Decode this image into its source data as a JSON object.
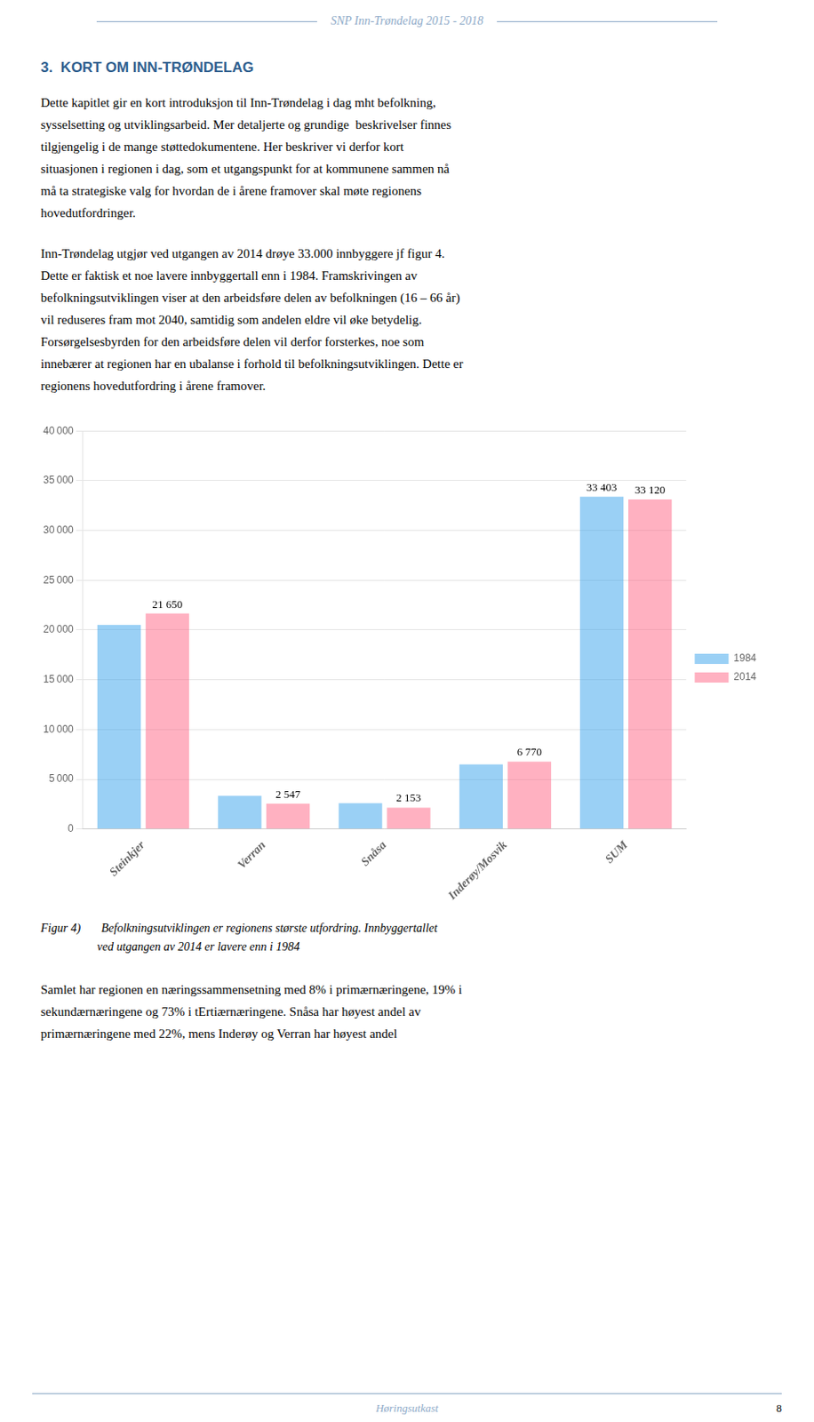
{
  "header_title": "SNP Inn-Trøndelag 2015 - 2018",
  "section_title": "3.  KORT OM INN-TRØNDELAG",
  "para1_lines": [
    "Dette kapitlet gir en kort introduksjon til Inn-Trøndelag i dag mht befolkning,",
    "sysselsetting og utviklingsarbeid. Mer detaljerte og grundige  beskrivelser finnes",
    "tilgjengelig i de mange støttedokumentene. Her beskriver vi derfor kort",
    "situasjonen i regionen i dag, som et utgangspunkt for at kommunene sammen nå",
    "må ta strategiske valg for hvordan de i årene framover skal møte regionens",
    "hovedutfordringer."
  ],
  "para2_lines": [
    "Inn-Trøndelag utgjør ved utgangen av 2014 drøye 33.000 innbyggere jf figur 4.",
    "Dette er faktisk et noe lavere innbyggertall enn i 1984. Framskrivingen av",
    "befolkningsutviklingen viser at den arbeidsføre delen av befolkningen (16 – 66 år)",
    "vil reduseres fram mot 2040, samtidig som andelen eldre vil øke betydelig.",
    "Forsørgelsesbyrden for den arbeidsføre delen vil derfor forsterkes, noe som",
    "innebærer at regionen har en ubalanse i forhold til befolkningsutviklingen. Dette er",
    "regionens hovedutfordring i årene framover."
  ],
  "caption_lines": [
    "Figur 4)       Befolkningsutviklingen er regionens største utfordring. Innbyggertallet",
    "                   ved utgangen av 2014 er lavere enn i 1984"
  ],
  "para3_lines": [
    "Samlet har regionen en næringssammensetning med 8% i primærnæringene, 19% i",
    "sekundærnæringene og 73% i tErtiærnæringene. Snåsa har høyest andel av",
    "primærnæringene med 22%, mens Inderøy og Verran har høyest andel"
  ],
  "footer_text": "Høringsutkast",
  "page_number": "8",
  "chart_data": {
    "type": "bar",
    "categories": [
      "Steinkjer",
      "Verran",
      "Snåsa",
      "Inderøy/Mosvik",
      "SUM"
    ],
    "series": [
      {
        "name": "1984",
        "values": [
          20500,
          3350,
          2600,
          6500,
          33403
        ],
        "value_labels": [
          null,
          null,
          null,
          null,
          "33 403"
        ]
      },
      {
        "name": "2014",
        "values": [
          21650,
          2547,
          2153,
          6770,
          33120
        ],
        "value_labels": [
          "21 650",
          "2 547",
          "2 153",
          "6 770",
          "33 120"
        ]
      }
    ],
    "ylim": [
      0,
      40000
    ],
    "yticks": [
      0,
      {
        "value": 5000,
        "label": "5 000"
      },
      {
        "value": 10000,
        "label": "10 000"
      },
      {
        "value": 15000,
        "label": "15 000"
      },
      {
        "value": 20000,
        "label": "20 000"
      },
      {
        "value": 25000,
        "label": "25 000"
      },
      {
        "value": 30000,
        "label": "30 000"
      },
      {
        "value": 35000,
        "label": "35 000"
      },
      {
        "value": 40000,
        "label": "40 000"
      }
    ],
    "grid": true,
    "legend": "right",
    "data_labels": true
  }
}
